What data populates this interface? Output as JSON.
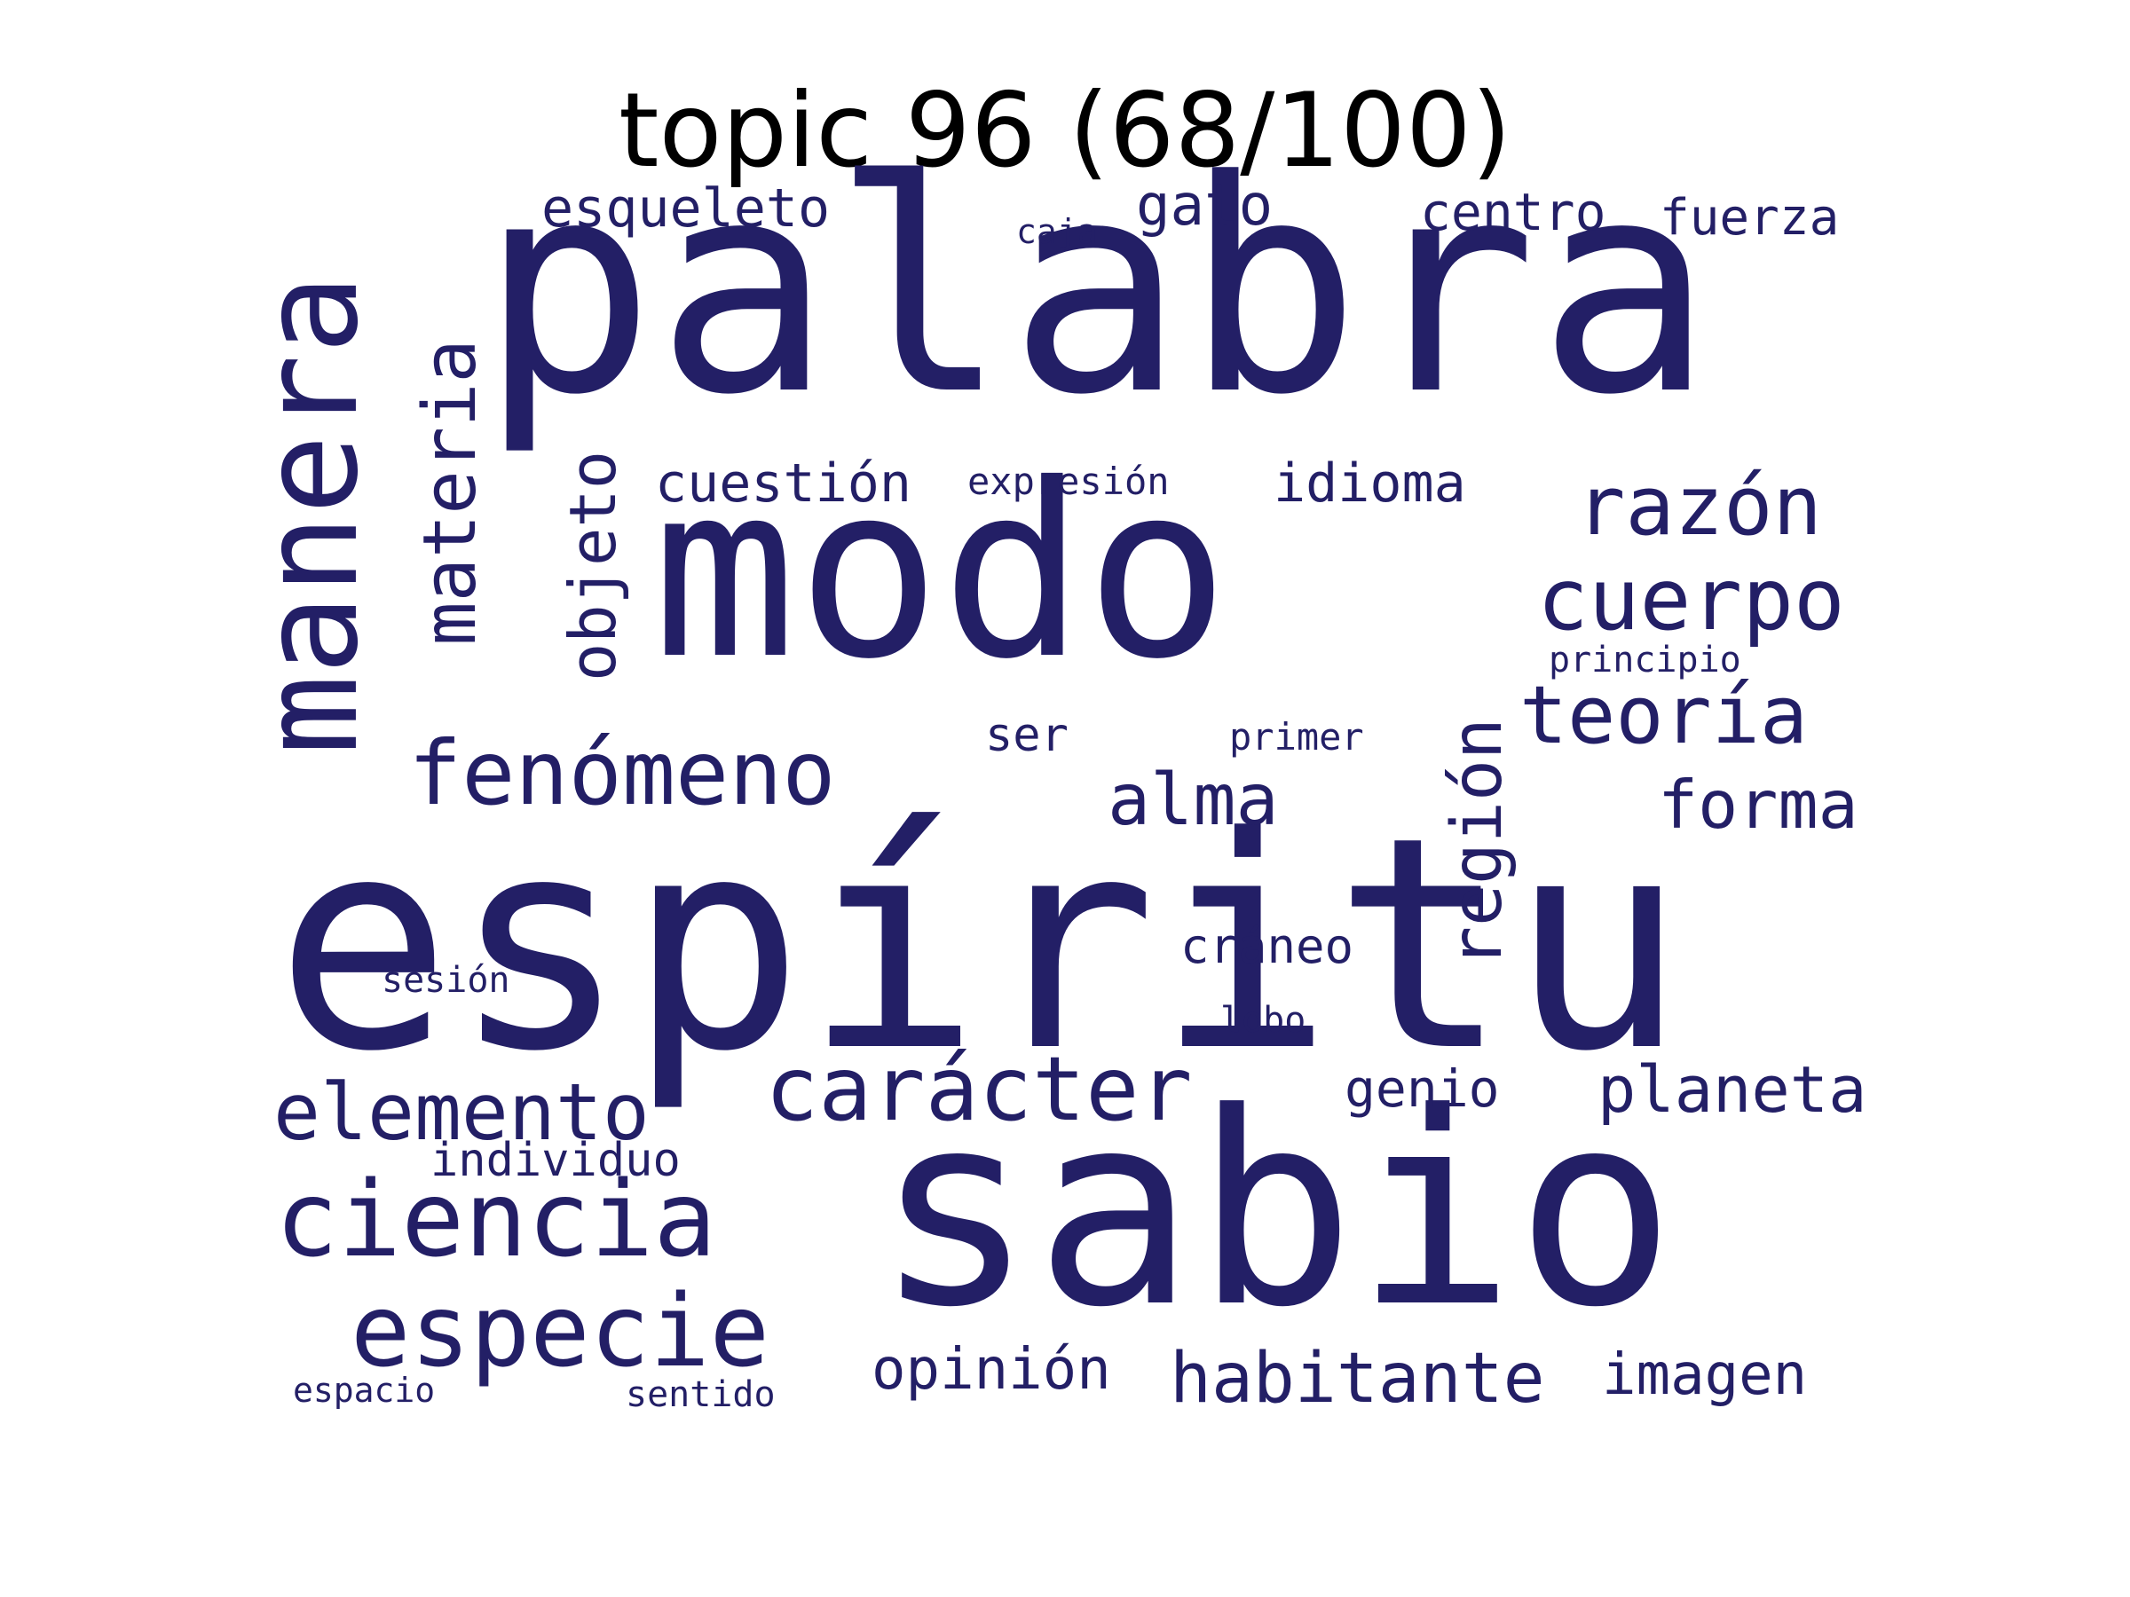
{
  "title": "topic 96 (68/100)",
  "word_color": "#231f66",
  "title_color": "#000000",
  "words": [
    {
      "text": "palabra",
      "weight": 1.0,
      "rotated": false
    },
    {
      "text": "espíritu",
      "weight": 0.98,
      "rotated": false
    },
    {
      "text": "sabio",
      "weight": 0.9,
      "rotated": false
    },
    {
      "text": "modo",
      "weight": 0.82,
      "rotated": false
    },
    {
      "text": "manera",
      "weight": 0.55,
      "rotated": true
    },
    {
      "text": "materia",
      "weight": 0.36,
      "rotated": true
    },
    {
      "text": "fenómeno",
      "weight": 0.34,
      "rotated": false
    },
    {
      "text": "ciencia",
      "weight": 0.4,
      "rotated": false
    },
    {
      "text": "especie",
      "weight": 0.36,
      "rotated": false
    },
    {
      "text": "carácter",
      "weight": 0.33,
      "rotated": false
    },
    {
      "text": "cuerpo",
      "weight": 0.31,
      "rotated": false
    },
    {
      "text": "razón",
      "weight": 0.3,
      "rotated": false
    },
    {
      "text": "teoría",
      "weight": 0.3,
      "rotated": false
    },
    {
      "text": "elemento",
      "weight": 0.29,
      "rotated": false
    },
    {
      "text": "región",
      "weight": 0.26,
      "rotated": true
    },
    {
      "text": "objeto",
      "weight": 0.25,
      "rotated": true
    },
    {
      "text": "alma",
      "weight": 0.26,
      "rotated": false
    },
    {
      "text": "habitante",
      "weight": 0.25,
      "rotated": false
    },
    {
      "text": "forma",
      "weight": 0.24,
      "rotated": false
    },
    {
      "text": "planeta",
      "weight": 0.23,
      "rotated": false
    },
    {
      "text": "imagen",
      "weight": 0.22,
      "rotated": false
    },
    {
      "text": "opinión",
      "weight": 0.22,
      "rotated": false
    },
    {
      "text": "cuestión",
      "weight": 0.21,
      "rotated": false
    },
    {
      "text": "idioma",
      "weight": 0.21,
      "rotated": false
    },
    {
      "text": "gato",
      "weight": 0.21,
      "rotated": false
    },
    {
      "text": "esqueleto",
      "weight": 0.2,
      "rotated": false
    },
    {
      "text": "centro",
      "weight": 0.2,
      "rotated": false
    },
    {
      "text": "fuerza",
      "weight": 0.19,
      "rotated": false
    },
    {
      "text": "genio",
      "weight": 0.19,
      "rotated": false
    },
    {
      "text": "cráneo",
      "weight": 0.18,
      "rotated": false
    },
    {
      "text": "individuo",
      "weight": 0.17,
      "rotated": false
    },
    {
      "text": "ser",
      "weight": 0.16,
      "rotated": false
    },
    {
      "text": "expresión",
      "weight": 0.14,
      "rotated": false
    },
    {
      "text": "primer",
      "weight": 0.14,
      "rotated": false
    },
    {
      "text": "principio",
      "weight": 0.13,
      "rotated": false
    },
    {
      "text": "lobo",
      "weight": 0.13,
      "rotated": false
    },
    {
      "text": "sesión",
      "weight": 0.13,
      "rotated": false
    },
    {
      "text": "sentido",
      "weight": 0.13,
      "rotated": false
    },
    {
      "text": "espacio",
      "weight": 0.12,
      "rotated": false
    },
    {
      "text": "caja",
      "weight": 0.12,
      "rotated": false
    }
  ]
}
